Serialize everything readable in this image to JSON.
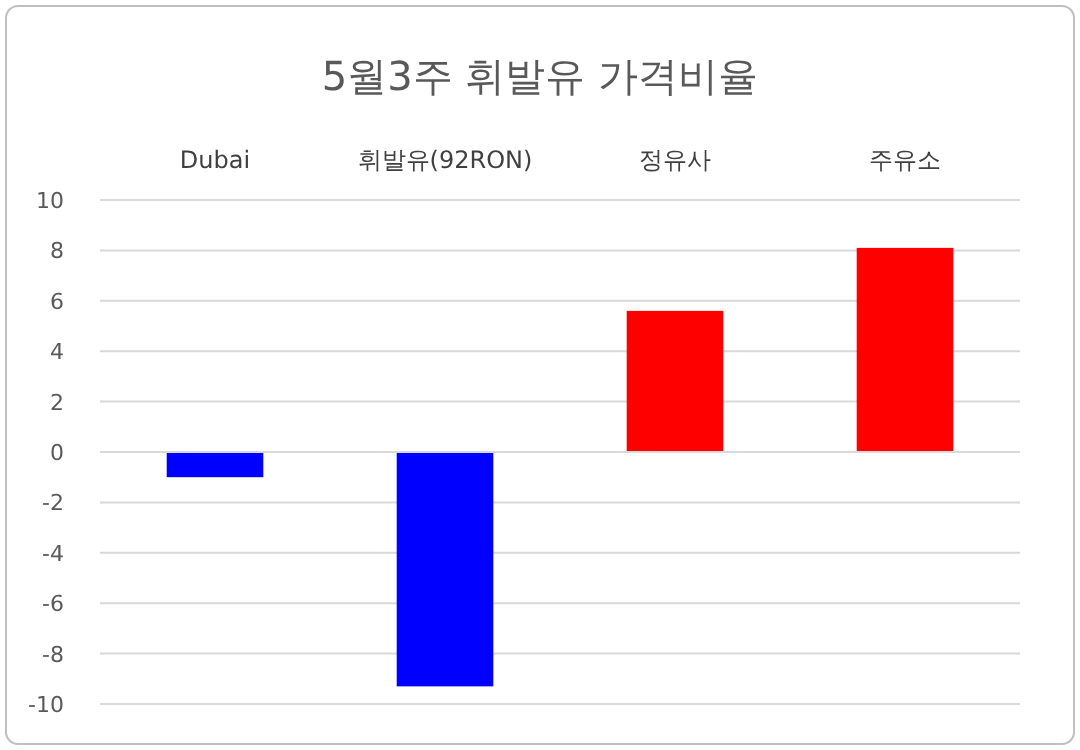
{
  "chart_data": {
    "type": "bar",
    "title": "5월3주 휘발유 가격비율",
    "categories": [
      "Dubai",
      "휘발유(92RON)",
      "정유사",
      "주유소"
    ],
    "values": [
      -1.0,
      -9.3,
      5.6,
      8.1
    ],
    "colors": [
      "#0000ff",
      "#0000ff",
      "#ff0000",
      "#ff0000"
    ],
    "ylim": [
      -10,
      10
    ],
    "yticks": [
      -10,
      -8,
      -6,
      -4,
      -2,
      0,
      2,
      4,
      6,
      8,
      10
    ],
    "grid": "y"
  }
}
